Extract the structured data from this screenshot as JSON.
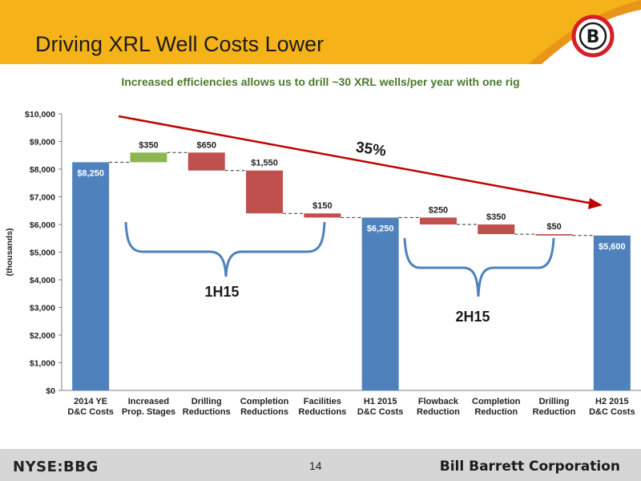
{
  "header": {
    "title": "Driving XRL Well Costs Lower",
    "logo_letter": "B",
    "colors": {
      "band": "#f5b319",
      "accent": "#e8951a",
      "logo_red": "#d42027"
    }
  },
  "subtitle": "Increased efficiencies allows us to drill ~30 XRL wells/per year with one rig",
  "chart_data": {
    "type": "bar",
    "subtype": "waterfall",
    "ylabel": "(thousands)",
    "ylim": [
      0,
      10000
    ],
    "yticks": [
      "$0",
      "$1,000",
      "$2,000",
      "$3,000",
      "$4,000",
      "$5,000",
      "$6,000",
      "$7,000",
      "$8,000",
      "$9,000",
      "$10,000"
    ],
    "categories": [
      [
        "2014 YE",
        "D&C Costs"
      ],
      [
        "Increased",
        "Prop. Stages"
      ],
      [
        "Drilling",
        "Reductions"
      ],
      [
        "Completion",
        "Reductions"
      ],
      [
        "Facilities",
        "Reductions"
      ],
      [
        "H1 2015",
        "D&C Costs"
      ],
      [
        "Flowback",
        "Reduction"
      ],
      [
        "Completion",
        "Reduction"
      ],
      [
        "Drilling",
        "Reduction"
      ],
      [
        "H2 2015",
        "D&C Costs"
      ]
    ],
    "steps": [
      {
        "kind": "total",
        "value": 8250,
        "label": "$8,250"
      },
      {
        "kind": "increase",
        "value": 350,
        "label": "$350"
      },
      {
        "kind": "decrease",
        "value": 650,
        "label": "$650"
      },
      {
        "kind": "decrease",
        "value": 1550,
        "label": "$1,550"
      },
      {
        "kind": "decrease",
        "value": 150,
        "label": "$150"
      },
      {
        "kind": "total",
        "value": 6250,
        "label": "$6,250"
      },
      {
        "kind": "decrease",
        "value": 250,
        "label": "$250"
      },
      {
        "kind": "decrease",
        "value": 350,
        "label": "$350"
      },
      {
        "kind": "decrease",
        "value": 50,
        "label": "$50"
      },
      {
        "kind": "total",
        "value": 5600,
        "label": "$5,600"
      }
    ],
    "colors": {
      "total": "#4f81bd",
      "increase": "#8db74e",
      "decrease": "#c0504d",
      "arrow": "#c00000",
      "brace": "#4f81bd"
    },
    "annotations": {
      "percent": "35%",
      "group1": "1H15",
      "group2": "2H15"
    },
    "grid": false
  },
  "footer": {
    "ticker": "NYSE:BBG",
    "page_number": "14",
    "company": "Bill Barrett Corporation"
  }
}
